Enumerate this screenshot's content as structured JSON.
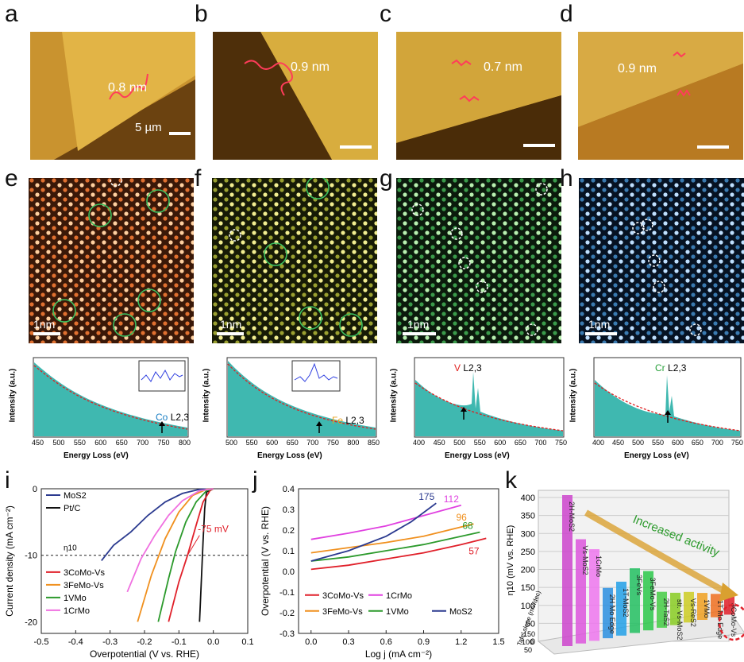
{
  "panel_labels": {
    "a": "a",
    "b": "b",
    "c": "c",
    "d": "d",
    "e": "e",
    "f": "f",
    "g": "g",
    "h": "h",
    "i": "i",
    "j": "j",
    "k": "k"
  },
  "afm": [
    {
      "thickness": "0.8 nm",
      "scale": "5 µm"
    },
    {
      "thickness": "0.9 nm",
      "scale": ""
    },
    {
      "thickness": "0.7 nm",
      "scale": ""
    },
    {
      "thickness": "0.9 nm",
      "scale": ""
    }
  ],
  "stem": [
    {
      "scale": "1nm",
      "color": "#c85a22"
    },
    {
      "scale": "1nm",
      "color": "#c9c83a"
    },
    {
      "scale": "1nm",
      "color": "#4fbf5a"
    },
    {
      "scale": "1nm",
      "color": "#5aa4d6"
    }
  ],
  "eels": [
    {
      "element": "Co",
      "edge": "L2,3",
      "element_color": "#1a7fc4",
      "ticks": [
        "450",
        "500",
        "550",
        "600",
        "650",
        "700",
        "750",
        "800"
      ],
      "ylabel": "Intensity (a.u.)",
      "xlabel": "Energy Loss (eV)",
      "edge_value": 775
    },
    {
      "element": "Fe",
      "edge": "L2,3",
      "element_color": "#e8a21e",
      "ticks": [
        "500",
        "550",
        "600",
        "650",
        "700",
        "750",
        "800",
        "850"
      ],
      "ylabel": "Intensity (a.u.)",
      "xlabel": "Energy Loss (eV)",
      "edge_value": 707
    },
    {
      "element": "V",
      "edge": "L2,3",
      "element_color": "#e0201e",
      "ticks": [
        "400",
        "450",
        "500",
        "550",
        "600",
        "650",
        "700",
        "750"
      ],
      "ylabel": "Intensity (a.u.)",
      "xlabel": "Energy Loss (eV)",
      "edge_value": 513
    },
    {
      "element": "Cr",
      "edge": "L2,3",
      "element_color": "#28a03a",
      "ticks": [
        "400",
        "450",
        "500",
        "550",
        "600",
        "650",
        "700",
        "750"
      ],
      "ylabel": "Intensity (a.u.)",
      "xlabel": "Energy Loss (eV)",
      "edge_value": 575
    }
  ],
  "chart_data": [
    {
      "type": "line",
      "xlabel": "Overpotential (V vs. RHE)",
      "ylabel": "Current density (mA cm⁻²)",
      "xlim": [
        -0.5,
        0.1
      ],
      "ylim": [
        -20,
        0
      ],
      "xticks": [
        "-0.5",
        "-0.4",
        "-0.3",
        "-0.2",
        "-0.1",
        "0.0",
        "0.1"
      ],
      "yticks": [
        "0",
        "-10",
        "-20"
      ],
      "eta_label": "η10",
      "annotation": "-75 mV",
      "series": [
        {
          "name": "MoS2",
          "color": "#2b3a8f",
          "x": [
            -0.325,
            -0.29,
            -0.24,
            -0.19,
            -0.14,
            -0.09,
            -0.04,
            0.0
          ],
          "y": [
            -10.8,
            -8.5,
            -6.5,
            -4.0,
            -2.0,
            -0.7,
            -0.1,
            0
          ]
        },
        {
          "name": "Pt/C",
          "color": "#111111",
          "x": [
            -0.04,
            -0.035,
            -0.03,
            -0.025,
            -0.02,
            0.0
          ],
          "y": [
            -20,
            -14,
            -8,
            -3,
            -0.5,
            0
          ]
        },
        {
          "name": "3CoMo-Vs",
          "color": "#e0202a",
          "x": [
            -0.13,
            -0.1,
            -0.075,
            -0.05,
            -0.03,
            -0.01,
            0.0
          ],
          "y": [
            -20,
            -14,
            -10,
            -5.5,
            -2,
            -0.3,
            0
          ]
        },
        {
          "name": "3FeMo-Vs",
          "color": "#f0901e",
          "x": [
            -0.22,
            -0.18,
            -0.14,
            -0.1,
            -0.06,
            -0.02,
            0.0
          ],
          "y": [
            -20,
            -13,
            -7.5,
            -3.5,
            -1,
            -0.1,
            0
          ]
        },
        {
          "name": "1VMo",
          "color": "#2c9a2c",
          "x": [
            -0.16,
            -0.13,
            -0.11,
            -0.08,
            -0.05,
            -0.02,
            0.0
          ],
          "y": [
            -20,
            -13.5,
            -9.5,
            -5,
            -2,
            -0.3,
            0
          ]
        },
        {
          "name": "1CrMo",
          "color": "#f070e0",
          "x": [
            -0.25,
            -0.21,
            -0.17,
            -0.13,
            -0.09,
            -0.04,
            0.0
          ],
          "y": [
            -15.5,
            -10.5,
            -7,
            -4,
            -1.8,
            -0.3,
            0
          ]
        }
      ],
      "legend_top": [
        "MoS2",
        "Pt/C"
      ],
      "legend_bottom": [
        "3CoMo-Vs",
        "3FeMo-Vs",
        "1VMo",
        "1CrMo"
      ]
    },
    {
      "type": "line",
      "xlabel": "Log j (mA cm⁻²)",
      "ylabel": "Overpotential (V vs. RHE)",
      "xlim": [
        -0.1,
        1.5
      ],
      "ylim": [
        -0.3,
        0.4
      ],
      "xticks": [
        "0.0",
        "0.3",
        "0.6",
        "0.9",
        "1.2",
        "1.5"
      ],
      "yticks": [
        "0.4",
        "0.3",
        "0.2",
        "0.1",
        "0.0",
        "-0.1",
        "-0.2",
        "-0.3"
      ],
      "series": [
        {
          "name": "3CoMo-Vs",
          "color": "#e0202a",
          "x": [
            0,
            0.3,
            0.6,
            0.9,
            1.2,
            1.4
          ],
          "y": [
            0.01,
            0.03,
            0.06,
            0.09,
            0.13,
            0.16
          ],
          "slope": "57"
        },
        {
          "name": "1CrMo",
          "color": "#e040e0",
          "x": [
            0,
            0.3,
            0.6,
            0.9,
            1.2
          ],
          "y": [
            0.155,
            0.185,
            0.22,
            0.27,
            0.32
          ],
          "slope": "112"
        },
        {
          "name": "3FeMo-Vs",
          "color": "#f0901e",
          "x": [
            0,
            0.3,
            0.6,
            0.9,
            1.3
          ],
          "y": [
            0.09,
            0.115,
            0.14,
            0.17,
            0.23
          ],
          "slope": "96"
        },
        {
          "name": "1VMo",
          "color": "#2c9a2c",
          "x": [
            0,
            0.3,
            0.6,
            0.9,
            1.35
          ],
          "y": [
            0.05,
            0.07,
            0.1,
            0.13,
            0.19
          ],
          "slope": "68"
        },
        {
          "name": "MoS2",
          "color": "#2b3a8f",
          "x": [
            0,
            0.3,
            0.6,
            0.8,
            1.0
          ],
          "y": [
            0.05,
            0.1,
            0.17,
            0.24,
            0.33
          ],
          "slope": "175"
        }
      ]
    },
    {
      "type": "bar",
      "zlabel": "η10 (mV vs. RHE)",
      "ylabel": "Tafel slope (mV/dec)",
      "zticks": [
        "400",
        "350",
        "300",
        "250",
        "200",
        "150",
        "100",
        "50",
        "0"
      ],
      "yticks": [
        "150",
        "100",
        "50"
      ],
      "trend_label": "Increased activity",
      "bars": [
        {
          "label": "2H-MoS2",
          "value": 420,
          "color": "#cc44cc"
        },
        {
          "label": "Vs-MoS2",
          "value": 290,
          "color": "#dd55dd"
        },
        {
          "label": "1CrMo",
          "value": 255,
          "color": "#ee77ee"
        },
        {
          "label": "2H Mo Edge",
          "value": 140,
          "color": "#2a8fe0"
        },
        {
          "label": "1T-MoS2",
          "value": 150,
          "color": "#22a0e8"
        },
        {
          "label": "3FeVs",
          "value": 180,
          "color": "#22c060"
        },
        {
          "label": "3FeMo-Vs",
          "value": 165,
          "color": "#2cc84a"
        },
        {
          "label": "2H-TaS2",
          "value": 100,
          "color": "#44cc44"
        },
        {
          "label": "str. Vs-MoS2",
          "value": 90,
          "color": "#88cc22"
        },
        {
          "label": "Vs-ReS2",
          "value": 85,
          "color": "#cccc22"
        },
        {
          "label": "1VMo",
          "value": 75,
          "color": "#f0a020"
        },
        {
          "label": "1T Mo Edge",
          "value": 65,
          "color": "#f07020"
        },
        {
          "label": "3CoMo-Vs",
          "value": 50,
          "color": "#e0202a"
        }
      ]
    }
  ]
}
